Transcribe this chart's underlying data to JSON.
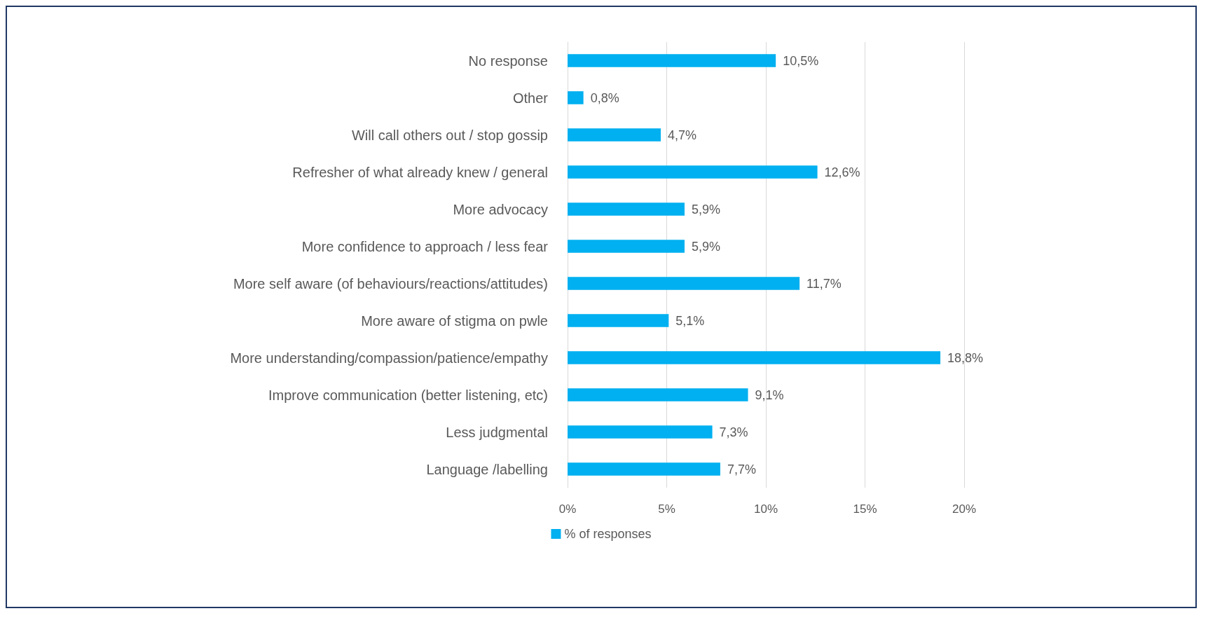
{
  "chart_data": {
    "type": "bar",
    "orientation": "horizontal",
    "categories": [
      "No response",
      "Other",
      "Will call others out / stop gossip",
      "Refresher of what already knew / general",
      "More advocacy",
      "More confidence to approach / less fear",
      "More self aware (of behaviours/reactions/attitudes)",
      "More aware of stigma on pwle",
      "More understanding/compassion/patience/empathy",
      "Improve communication (better listening, etc)",
      "Less judgmental",
      "Language /labelling"
    ],
    "series": [
      {
        "name": "% of responses",
        "color": "#00b0f0",
        "values": [
          10.5,
          0.8,
          4.7,
          12.6,
          5.9,
          5.9,
          11.7,
          5.1,
          18.8,
          9.1,
          7.3,
          7.7
        ],
        "value_labels": [
          "10,5%",
          "0,8%",
          "4,7%",
          "12,6%",
          "5,9%",
          "5,9%",
          "11,7%",
          "5,1%",
          "18,8%",
          "9,1%",
          "7,3%",
          "7,7%"
        ]
      }
    ],
    "xlim": [
      0,
      20
    ],
    "xticks": [
      {
        "value": 0,
        "label": "0%"
      },
      {
        "value": 5,
        "label": "5%"
      },
      {
        "value": 10,
        "label": "10%"
      },
      {
        "value": 15,
        "label": "15%"
      },
      {
        "value": 20,
        "label": "20%"
      }
    ],
    "grid": "x",
    "legend": "bottom"
  }
}
